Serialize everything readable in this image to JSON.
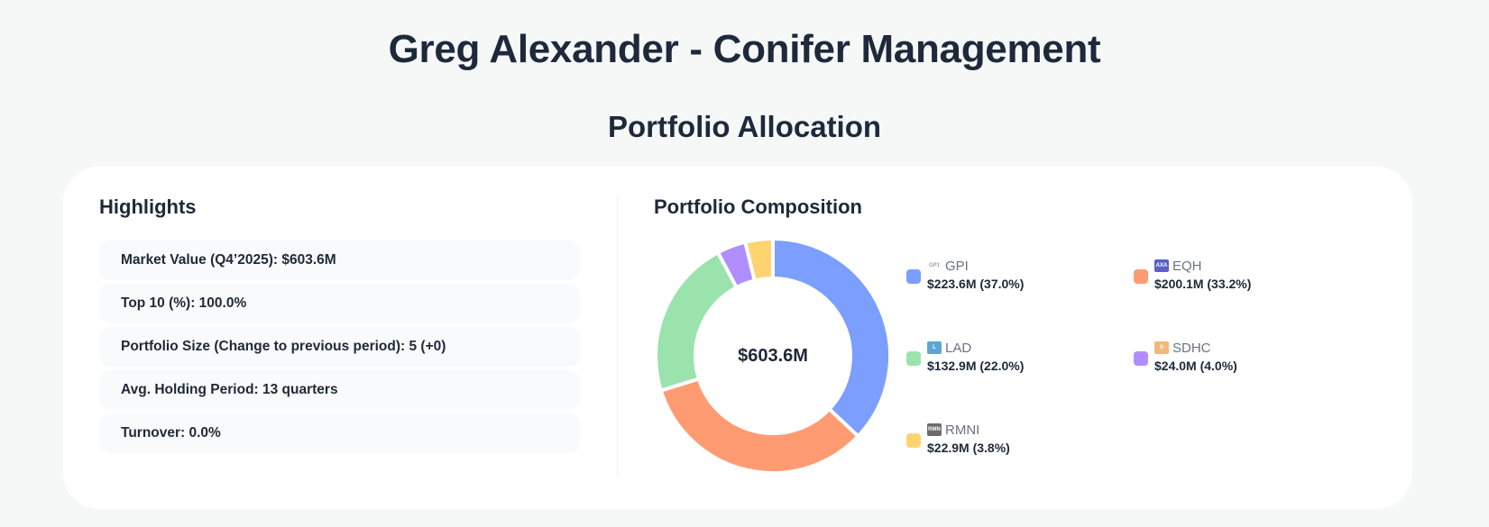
{
  "header": {
    "title": "Greg Alexander - Conifer Management",
    "section_title": "Portfolio Allocation"
  },
  "highlights": {
    "title": "Highlights",
    "items": [
      {
        "label": "Market Value (Q4’2025): $603.6M"
      },
      {
        "label": "Top 10 (%): 100.0%"
      },
      {
        "label": "Portfolio Size (Change to previous period): 5 (+0)"
      },
      {
        "label": "Avg. Holding Period: 13 quarters"
      },
      {
        "label": "Turnover: 0.0%"
      }
    ]
  },
  "composition": {
    "title": "Portfolio Composition",
    "center_label": "$603.6M",
    "legend": [
      {
        "ticker": "GPI",
        "value": "$223.6M (37.0%)",
        "color": "#7b9eff",
        "logo": "GP1",
        "logo_color": "#9ca3af",
        "logo_bg": "transparent"
      },
      {
        "ticker": "EQH",
        "value": "$200.1M (33.2%)",
        "color": "#ff9b73",
        "logo": "AXA",
        "logo_color": "#ffffff",
        "logo_bg": "#5b5fc7"
      },
      {
        "ticker": "LAD",
        "value": "$132.9M (22.0%)",
        "color": "#9be3ac",
        "logo": "L",
        "logo_color": "#ffffff",
        "logo_bg": "#60a5d8"
      },
      {
        "ticker": "SDHC",
        "value": "$24.0M (4.0%)",
        "color": "#b08eff",
        "logo": "S",
        "logo_color": "#ffffff",
        "logo_bg": "#f0b87a"
      },
      {
        "ticker": "RMNI",
        "value": "$22.9M (3.8%)",
        "color": "#ffd470",
        "logo": "RMN",
        "logo_color": "#ffffff",
        "logo_bg": "#6b6b6b"
      }
    ]
  },
  "chart_data": {
    "type": "pie",
    "variant": "donut",
    "title": "Portfolio Composition",
    "center_label": "$603.6M",
    "categories": [
      "GPI",
      "EQH",
      "LAD",
      "SDHC",
      "RMNI"
    ],
    "values": [
      223.6,
      200.1,
      132.9,
      24.0,
      22.9
    ],
    "percentages": [
      37.0,
      33.2,
      22.0,
      4.0,
      3.8
    ],
    "unit": "$M",
    "colors": [
      "#7b9eff",
      "#ff9b73",
      "#9be3ac",
      "#b08eff",
      "#ffd470"
    ],
    "legend_position": "right"
  }
}
